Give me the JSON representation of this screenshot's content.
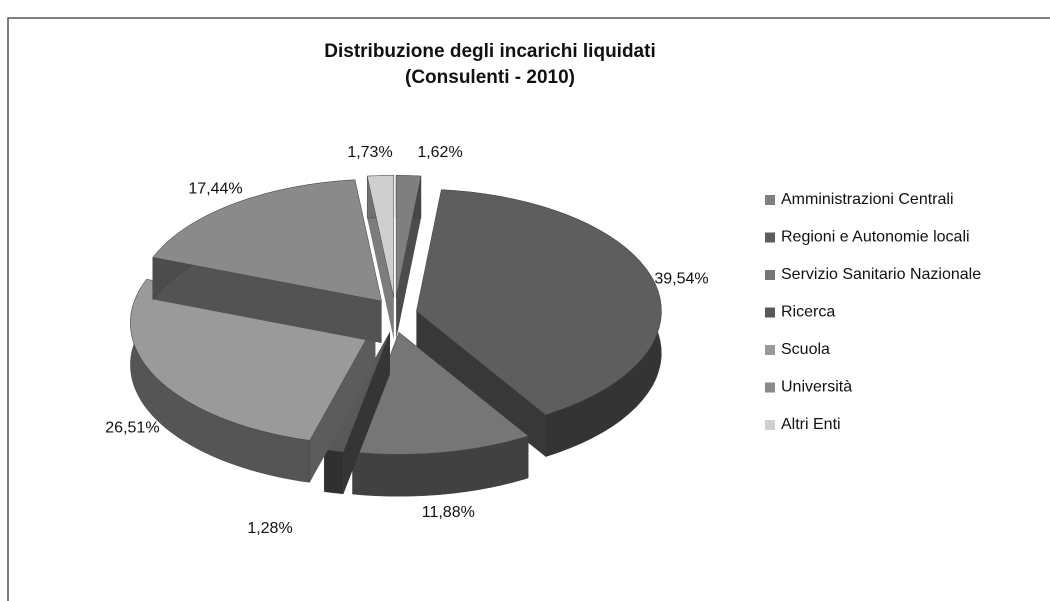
{
  "chart_data": {
    "type": "pie",
    "title": "Distribuzione degli incarichi liquidati",
    "subtitle": "(Consulenti - 2010)",
    "categories": [
      "Amministrazioni Centrali",
      "Regioni e Autonomie locali",
      "Servizio Sanitario Nazionale",
      "Ricerca",
      "Scuola",
      "Università",
      "Altri Enti"
    ],
    "values": [
      1.62,
      39.54,
      11.88,
      1.28,
      26.51,
      17.44,
      1.73
    ],
    "value_labels": [
      "1,62%",
      "39,54%",
      "11,88%",
      "1,28%",
      "26,51%",
      "17,44%",
      "1,73%"
    ],
    "colors": [
      "#7f7f7f",
      "#5e5e5e",
      "#767676",
      "#585858",
      "#9a9a9a",
      "#8a8a8a",
      "#cfcfcf"
    ],
    "legend": "right"
  }
}
